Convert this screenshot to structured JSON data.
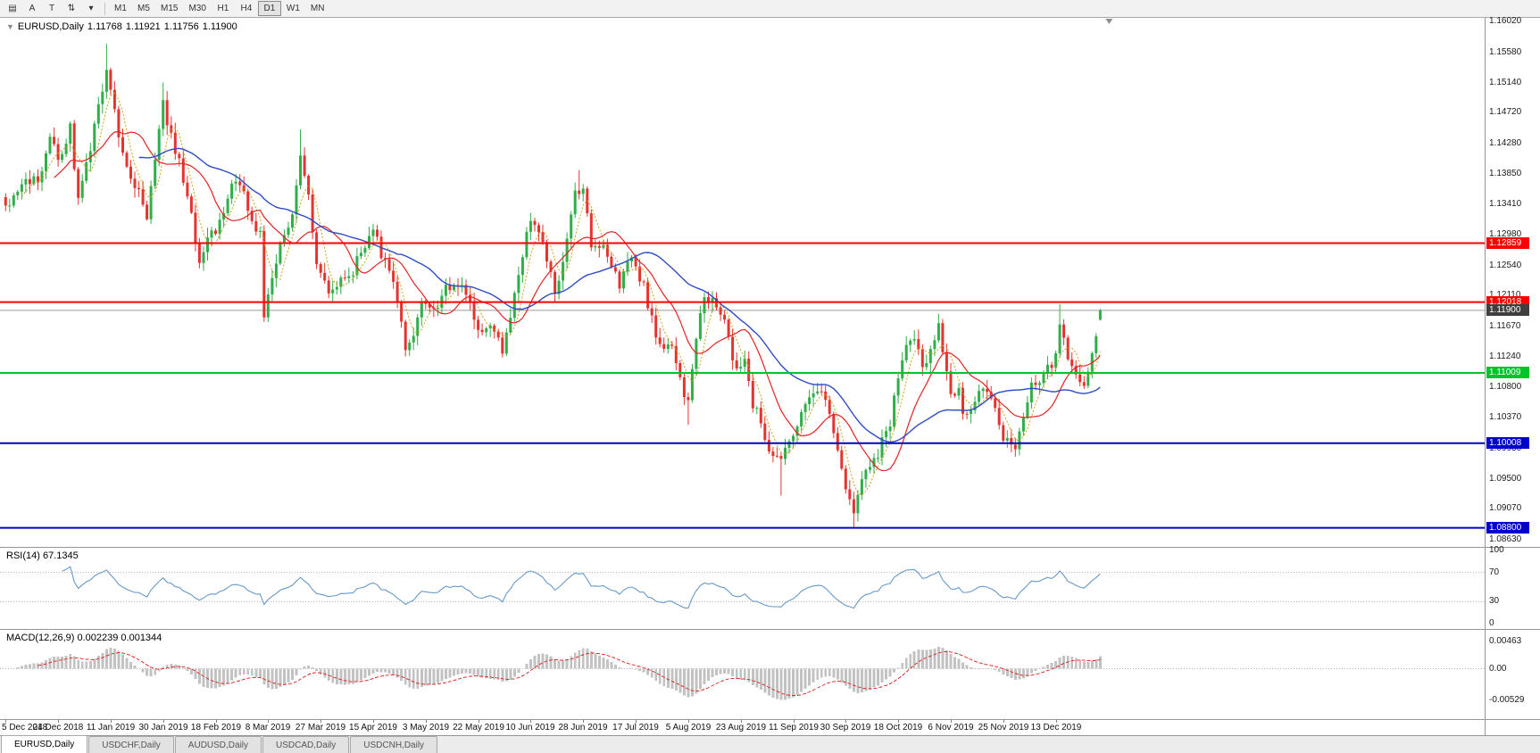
{
  "toolbar": {
    "icon_buttons": [
      {
        "name": "chart-windows-icon",
        "glyph": "▤"
      },
      {
        "name": "annotation-a-button",
        "glyph": "A"
      },
      {
        "name": "text-tool-button",
        "glyph": "T"
      },
      {
        "name": "indicator-arrows-icon",
        "glyph": "⇅"
      },
      {
        "name": "dropdown-arrow-icon",
        "glyph": "▾"
      }
    ],
    "timeframes": [
      "M1",
      "M5",
      "M15",
      "M30",
      "H1",
      "H4",
      "D1",
      "W1",
      "MN"
    ],
    "active_timeframe": "D1"
  },
  "chart": {
    "header": {
      "marker": "▼",
      "symbol": "EURUSD,Daily",
      "open": "1.11768",
      "high": "1.11921",
      "low": "1.11756",
      "close": "1.11900"
    },
    "price_axis_labels": [
      "1.16020",
      "1.15580",
      "1.15140",
      "1.14720",
      "1.14280",
      "1.13850",
      "1.13410",
      "1.12980",
      "1.12540",
      "1.12110",
      "1.11670",
      "1.11240",
      "1.10800",
      "1.10370",
      "1.09930",
      "1.09500",
      "1.09070",
      "1.08630"
    ],
    "price_max": 1.1602,
    "price_min": 1.0863,
    "hlines": [
      {
        "name": "resistance-line-upper",
        "price": 1.12859,
        "label": "1.12859",
        "color": "#ff0000",
        "width": 2
      },
      {
        "name": "resistance-line-lower",
        "price": 1.12018,
        "label": "1.12018",
        "color": "#ff0000",
        "width": 2
      },
      {
        "name": "support-line-green",
        "price": 1.11009,
        "label": "1.11009",
        "color": "#00c428",
        "width": 2
      },
      {
        "name": "support-line-blue-upper",
        "price": 1.10008,
        "label": "1.10008",
        "color": "#0000cd",
        "width": 2
      },
      {
        "name": "support-line-blue-lower",
        "price": 1.088,
        "label": "1.08800",
        "color": "#0000cd",
        "width": 2
      }
    ],
    "bid": {
      "price": 1.119,
      "label": "1.11900",
      "line_color": "#9a9a9a",
      "badge_color": "#3f3f3f"
    }
  },
  "rsi": {
    "title": "RSI(14) 67.1345",
    "period": 14,
    "value": 67.1345,
    "axis_labels": [
      "100",
      "70",
      "30",
      "0"
    ],
    "axis_values": [
      100,
      70,
      30,
      0
    ],
    "level_lines": [
      70,
      30
    ],
    "line_color": "#6699cc"
  },
  "macd": {
    "title": "MACD(12,26,9) 0.002239 0.001344",
    "fast": 12,
    "slow": 26,
    "signal": 9,
    "main_value": 0.002239,
    "signal_value": 0.001344,
    "axis_labels": [
      "0.00463",
      "0.00",
      "-0.00529"
    ],
    "axis_values": [
      0.00463,
      0,
      -0.00529
    ],
    "scale_max": 0.00655,
    "scale_min": -0.0085,
    "hist_color": "#c2c2c2",
    "signal_color": "#e03131"
  },
  "tabs": [
    {
      "label": "EURUSD,Daily",
      "active": true
    },
    {
      "label": "USDCHF,Daily",
      "active": false
    },
    {
      "label": "AUDUSD,Daily",
      "active": false
    },
    {
      "label": "USDCAD,Daily",
      "active": false
    },
    {
      "label": "USDCNH,Daily",
      "active": false
    }
  ],
  "chart_data": {
    "type": "candlestick",
    "symbol": "EURUSD",
    "timeframe": "Daily",
    "ylim": [
      1.0863,
      1.1602
    ],
    "bars": 272,
    "right_shift": 0.74,
    "x_tick_every": 13,
    "x_tick_labels": [
      "5 Dec 2018",
      "24 Dec 2018",
      "11 Jan 2019",
      "30 Jan 2019",
      "18 Feb 2019",
      "8 Mar 2019",
      "27 Mar 2019",
      "15 Apr 2019",
      "3 May 2019",
      "22 May 2019",
      "10 Jun 2019",
      "28 Jun 2019",
      "17 Jul 2019",
      "5 Aug 2019",
      "23 Aug 2019",
      "11 Sep 2019",
      "30 Sep 2019",
      "18 Oct 2019",
      "6 Nov 2019",
      "25 Nov 2019",
      "13 Dec 2019"
    ],
    "up_color": "#2fae4a",
    "down_color": "#e3342f",
    "close_anchors": [
      [
        0,
        1.1343
      ],
      [
        5,
        1.137
      ],
      [
        9,
        1.138
      ],
      [
        11,
        1.1445
      ],
      [
        13,
        1.14
      ],
      [
        16,
        1.1455
      ],
      [
        18,
        1.135
      ],
      [
        21,
        1.142
      ],
      [
        24,
        1.15
      ],
      [
        25,
        1.1535
      ],
      [
        27,
        1.147
      ],
      [
        30,
        1.139
      ],
      [
        33,
        1.1365
      ],
      [
        35,
        1.1315
      ],
      [
        37,
        1.14
      ],
      [
        39,
        1.1485
      ],
      [
        41,
        1.144
      ],
      [
        43,
        1.14
      ],
      [
        46,
        1.1325
      ],
      [
        48,
        1.1255
      ],
      [
        50,
        1.1295
      ],
      [
        53,
        1.131
      ],
      [
        56,
        1.137
      ],
      [
        59,
        1.137
      ],
      [
        61,
        1.131
      ],
      [
        63,
        1.13
      ],
      [
        64,
        1.119
      ],
      [
        66,
        1.124
      ],
      [
        69,
        1.1305
      ],
      [
        71,
        1.1325
      ],
      [
        73,
        1.1415
      ],
      [
        75,
        1.135
      ],
      [
        77,
        1.1265
      ],
      [
        80,
        1.122
      ],
      [
        83,
        1.123
      ],
      [
        86,
        1.125
      ],
      [
        88,
        1.1275
      ],
      [
        91,
        1.13
      ],
      [
        94,
        1.126
      ],
      [
        96,
        1.123
      ],
      [
        99,
        1.1135
      ],
      [
        101,
        1.1155
      ],
      [
        103,
        1.12
      ],
      [
        106,
        1.119
      ],
      [
        109,
        1.122
      ],
      [
        112,
        1.123
      ],
      [
        115,
        1.12
      ],
      [
        118,
        1.1155
      ],
      [
        121,
        1.117
      ],
      [
        123,
        1.1135
      ],
      [
        125,
        1.118
      ],
      [
        127,
        1.1245
      ],
      [
        130,
        1.1315
      ],
      [
        133,
        1.129
      ],
      [
        136,
        1.121
      ],
      [
        139,
        1.129
      ],
      [
        141,
        1.1365
      ],
      [
        143,
        1.137
      ],
      [
        145,
        1.1285
      ],
      [
        148,
        1.128
      ],
      [
        150,
        1.1255
      ],
      [
        152,
        1.1225
      ],
      [
        155,
        1.127
      ],
      [
        158,
        1.1225
      ],
      [
        161,
        1.115
      ],
      [
        164,
        1.114
      ],
      [
        166,
        1.112
      ],
      [
        168,
        1.1075
      ],
      [
        169,
        1.106
      ],
      [
        171,
        1.115
      ],
      [
        173,
        1.1205
      ],
      [
        176,
        1.12
      ],
      [
        178,
        1.1175
      ],
      [
        181,
        1.11
      ],
      [
        183,
        1.1125
      ],
      [
        185,
        1.106
      ],
      [
        187,
        1.103
      ],
      [
        189,
        1.099
      ],
      [
        192,
        1.097
      ],
      [
        194,
        1.1
      ],
      [
        196,
        1.1035
      ],
      [
        199,
        1.106
      ],
      [
        202,
        1.107
      ],
      [
        205,
        1.1015
      ],
      [
        208,
        1.0935
      ],
      [
        210,
        1.09
      ],
      [
        212,
        1.094
      ],
      [
        214,
        1.0965
      ],
      [
        217,
        1.1
      ],
      [
        219,
        1.103
      ],
      [
        221,
        1.1095
      ],
      [
        223,
        1.114
      ],
      [
        225,
        1.115
      ],
      [
        227,
        1.111
      ],
      [
        229,
        1.1125
      ],
      [
        231,
        1.116
      ],
      [
        234,
        1.107
      ],
      [
        236,
        1.107
      ],
      [
        238,
        1.1035
      ],
      [
        240,
        1.106
      ],
      [
        242,
        1.1075
      ],
      [
        245,
        1.105
      ],
      [
        247,
        1.101
      ],
      [
        250,
        1.099
      ],
      [
        252,
        1.103
      ],
      [
        254,
        1.108
      ],
      [
        256,
        1.1085
      ],
      [
        258,
        1.1105
      ],
      [
        260,
        1.113
      ],
      [
        261,
        1.117
      ],
      [
        263,
        1.112
      ],
      [
        265,
        1.111
      ],
      [
        267,
        1.1075
      ],
      [
        269,
        1.1125
      ],
      [
        271,
        1.119
      ]
    ],
    "spikes": [
      {
        "i": 25,
        "type": "high",
        "price": 1.157
      },
      {
        "i": 39,
        "type": "high",
        "price": 1.1515
      },
      {
        "i": 73,
        "type": "high",
        "price": 1.1448
      },
      {
        "i": 142,
        "type": "high",
        "price": 1.139
      },
      {
        "i": 169,
        "type": "low",
        "price": 1.1027
      },
      {
        "i": 192,
        "type": "low",
        "price": 1.0926
      },
      {
        "i": 210,
        "type": "low",
        "price": 1.0879
      },
      {
        "i": 261,
        "type": "high",
        "price": 1.1199
      }
    ],
    "last_bar": {
      "open": 1.11768,
      "high": 1.11921,
      "low": 1.11756,
      "close": 1.119
    },
    "moving_averages": [
      {
        "period": 5,
        "color": "#d0a018",
        "style": "dash",
        "width": 1
      },
      {
        "period": 13,
        "color": "#e32222",
        "style": "solid",
        "width": 1.2
      },
      {
        "period": 34,
        "color": "#2e4bc6",
        "style": "solid",
        "width": 1.4
      }
    ]
  }
}
